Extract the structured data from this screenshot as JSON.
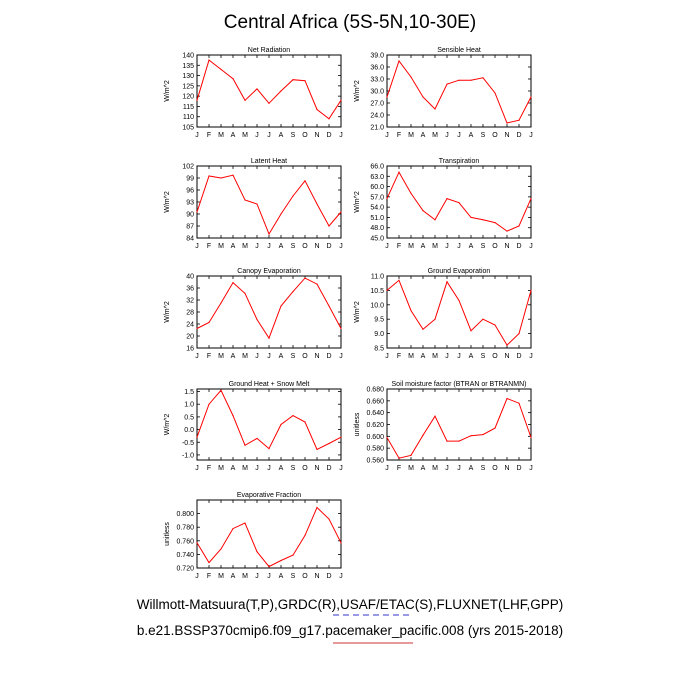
{
  "title": "Central Africa (5S-5N,10-30E)",
  "caption_line1": "Willmott-Matsuura(T,P),GRDC(R),USAF/ETAC(S),FLUXNET(LHF,GPP)",
  "caption_line2": "b.e21.BSSP370cmip6.f09_g17.pacemaker_pacific.008 (yrs 2015-2018)",
  "colors": {
    "line": "#ff0000",
    "axis": "#000000",
    "underline_dashed": "#3333cc",
    "underline_solid": "#cc3333"
  },
  "chart_data": [
    {
      "type": "line",
      "title": "Net Radiation",
      "ylabel": "W/m^2",
      "categories": [
        "J",
        "F",
        "M",
        "A",
        "M",
        "J",
        "J",
        "A",
        "S",
        "O",
        "N",
        "D",
        "J"
      ],
      "ylim": [
        105,
        140
      ],
      "yticks": [
        "105",
        "110",
        "115",
        "120",
        "125",
        "130",
        "135",
        "140"
      ],
      "values": [
        118,
        137.5,
        133,
        128.5,
        118,
        123.5,
        116.5,
        122.5,
        128,
        127.5,
        113.5,
        109,
        118
      ]
    },
    {
      "type": "line",
      "title": "Sensible Heat",
      "ylabel": "W/m^2",
      "categories": [
        "J",
        "F",
        "M",
        "A",
        "M",
        "J",
        "J",
        "A",
        "S",
        "O",
        "N",
        "D",
        "J"
      ],
      "ylim": [
        21,
        39
      ],
      "yticks": [
        "21.0",
        "24.0",
        "27.0",
        "30.0",
        "33.0",
        "36.0",
        "39.0"
      ],
      "values": [
        28.5,
        37.5,
        33.5,
        28.5,
        25.5,
        31.7,
        32.7,
        32.7,
        33.3,
        29.5,
        22,
        22.7,
        28.5
      ]
    },
    {
      "type": "line",
      "title": "Latent Heat",
      "ylabel": "W/m^2",
      "categories": [
        "J",
        "F",
        "M",
        "A",
        "M",
        "J",
        "J",
        "A",
        "S",
        "O",
        "N",
        "D",
        "J"
      ],
      "ylim": [
        84,
        102
      ],
      "yticks": [
        "84",
        "87",
        "90",
        "93",
        "96",
        "99",
        "102"
      ],
      "values": [
        90.5,
        99.5,
        99,
        99.7,
        93.5,
        92.5,
        85,
        90,
        94.5,
        98.3,
        92.5,
        87,
        90.5
      ]
    },
    {
      "type": "line",
      "title": "Transpiration",
      "ylabel": "W/m^2",
      "categories": [
        "J",
        "F",
        "M",
        "A",
        "M",
        "J",
        "J",
        "A",
        "S",
        "O",
        "N",
        "D",
        "J"
      ],
      "ylim": [
        45,
        66
      ],
      "yticks": [
        "45.0",
        "48.0",
        "51.0",
        "54.0",
        "57.0",
        "60.0",
        "63.0",
        "66.0"
      ],
      "values": [
        56.5,
        64.2,
        58,
        53,
        50.3,
        56.5,
        55.3,
        51,
        50.3,
        49.5,
        47,
        48.5,
        56.5
      ]
    },
    {
      "type": "line",
      "title": "Canopy Evaporation",
      "ylabel": "W/m^2",
      "categories": [
        "J",
        "F",
        "M",
        "A",
        "M",
        "J",
        "J",
        "A",
        "S",
        "O",
        "N",
        "D",
        "J"
      ],
      "ylim": [
        16,
        40
      ],
      "yticks": [
        "16",
        "20",
        "24",
        "28",
        "32",
        "36",
        "40"
      ],
      "values": [
        22.5,
        24.5,
        31,
        37.8,
        34.2,
        25.5,
        19.3,
        30,
        34.8,
        39.3,
        37.3,
        30,
        22.5
      ]
    },
    {
      "type": "line",
      "title": "Ground Evaporation",
      "ylabel": "W/m^2",
      "categories": [
        "J",
        "F",
        "M",
        "A",
        "M",
        "J",
        "J",
        "A",
        "S",
        "O",
        "N",
        "D",
        "J"
      ],
      "ylim": [
        8.5,
        11
      ],
      "yticks": [
        "8.5",
        "9.0",
        "9.5",
        "10.0",
        "10.5",
        "11.0"
      ],
      "values": [
        10.5,
        10.85,
        9.8,
        9.15,
        9.5,
        10.8,
        10.15,
        9.1,
        9.5,
        9.3,
        8.6,
        9.0,
        10.5
      ]
    },
    {
      "type": "line",
      "title": "Ground Heat + Snow Melt",
      "ylabel": "W/m^2",
      "categories": [
        "J",
        "F",
        "M",
        "A",
        "M",
        "J",
        "J",
        "A",
        "S",
        "O",
        "N",
        "D",
        "J"
      ],
      "ylim": [
        -1.2,
        1.6
      ],
      "yticks": [
        "-1.0",
        "-0.5",
        "0.0",
        "0.5",
        "1.0",
        "1.5"
      ],
      "values": [
        -0.3,
        1.0,
        1.55,
        0.55,
        -0.62,
        -0.35,
        -0.75,
        0.2,
        0.55,
        0.3,
        -0.78,
        -0.55,
        -0.3
      ]
    },
    {
      "type": "line",
      "title": "Soil moisture factor (BTRAN or BTRANMN)",
      "ylabel": "unitless",
      "categories": [
        "J",
        "F",
        "M",
        "A",
        "M",
        "J",
        "J",
        "A",
        "S",
        "O",
        "N",
        "D",
        "J"
      ],
      "ylim": [
        0.56,
        0.68
      ],
      "yticks": [
        "0.560",
        "0.580",
        "0.600",
        "0.620",
        "0.640",
        "0.660",
        "0.680"
      ],
      "values": [
        0.598,
        0.563,
        0.568,
        0.602,
        0.634,
        0.592,
        0.592,
        0.601,
        0.603,
        0.614,
        0.664,
        0.656,
        0.598
      ]
    },
    {
      "type": "line",
      "title": "Evaporative Fraction",
      "ylabel": "unitless",
      "categories": [
        "J",
        "F",
        "M",
        "A",
        "M",
        "J",
        "J",
        "A",
        "S",
        "O",
        "N",
        "D",
        "J"
      ],
      "ylim": [
        0.72,
        0.82
      ],
      "yticks": [
        "0.720",
        "0.740",
        "0.760",
        "0.780",
        "0.800"
      ],
      "values": [
        0.757,
        0.728,
        0.748,
        0.778,
        0.786,
        0.744,
        0.722,
        0.731,
        0.739,
        0.768,
        0.809,
        0.792,
        0.757
      ]
    }
  ]
}
